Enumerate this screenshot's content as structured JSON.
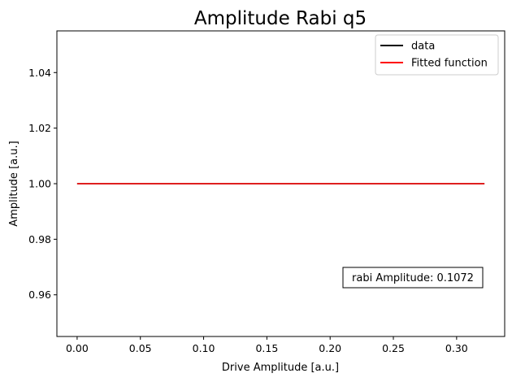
{
  "chart_data": {
    "type": "line",
    "title": "Amplitude Rabi q5",
    "xlabel": "Drive Amplitude [a.u.]",
    "ylabel": "Amplitude [a.u.]",
    "xlim": [
      -0.016,
      0.338
    ],
    "ylim": [
      0.945,
      1.055
    ],
    "xticks": [
      0.0,
      0.05,
      0.1,
      0.15,
      0.2,
      0.25,
      0.3
    ],
    "xtick_labels": [
      "0.00",
      "0.05",
      "0.10",
      "0.15",
      "0.20",
      "0.25",
      "0.30"
    ],
    "yticks": [
      0.96,
      0.98,
      1.0,
      1.02,
      1.04
    ],
    "ytick_labels": [
      "0.96",
      "0.98",
      "1.00",
      "1.02",
      "1.04"
    ],
    "grid": false,
    "legend_position": "top-right",
    "series": [
      {
        "name": "data",
        "color": "#000000",
        "x": [
          0.0,
          0.322
        ],
        "y": [
          1.0,
          1.0
        ]
      },
      {
        "name": "Fitted function",
        "color": "#ff0000",
        "x": [
          0.0,
          0.322
        ],
        "y": [
          1.0,
          1.0
        ]
      }
    ],
    "annotation": {
      "text": "rabi Amplitude: 0.1072",
      "position": "lower-right"
    }
  }
}
